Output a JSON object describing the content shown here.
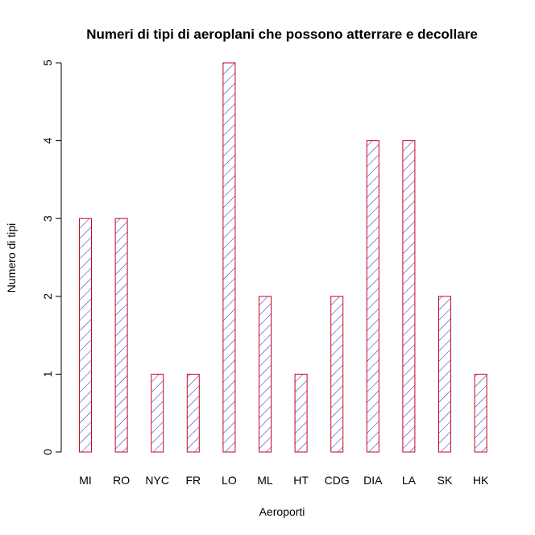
{
  "chart_data": {
    "type": "bar",
    "title": "Numeri di tipi di aeroplani che possono atterrare e decollare",
    "xlabel": "Aeroporti",
    "ylabel": "Numero di tipi",
    "categories": [
      "MI",
      "RO",
      "NYC",
      "FR",
      "LO",
      "ML",
      "HT",
      "CDG",
      "DIA",
      "LA",
      "SK",
      "HK"
    ],
    "values": [
      3,
      3,
      1,
      1,
      5,
      2,
      1,
      2,
      4,
      4,
      2,
      1
    ],
    "ylim": [
      0,
      5
    ],
    "yticks": [
      "0",
      "1",
      "2",
      "3",
      "4",
      "5"
    ],
    "grid": false,
    "fill_pattern": "diagonal-hatch",
    "colors": {
      "border": "#d0021b",
      "hatch": "#1f1fd0",
      "axis": "#000000"
    }
  }
}
